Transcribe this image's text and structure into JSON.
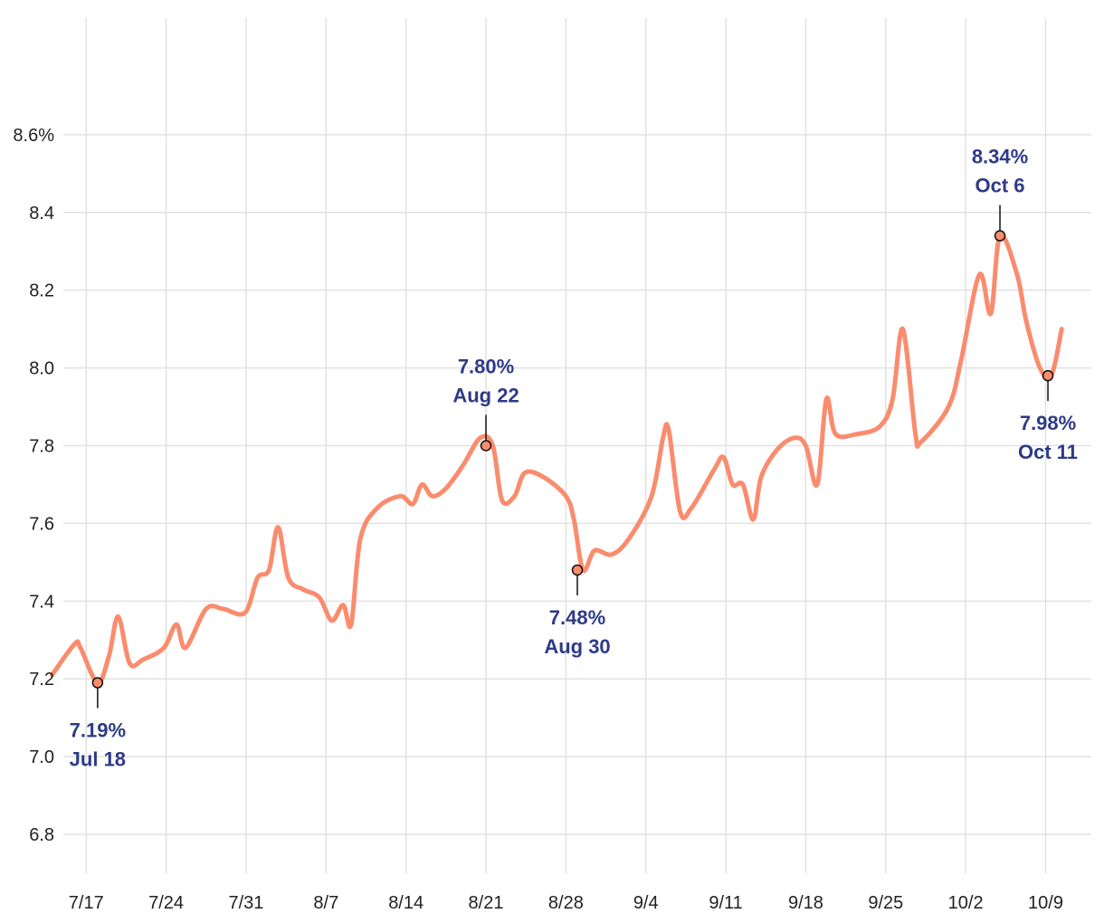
{
  "colors": {
    "line": "#fa8c6e",
    "grid": "#e2e2e2",
    "annotation_text": "#2e3a87",
    "marker_stroke": "#111111",
    "tick_text": "#222222"
  },
  "chart_data": {
    "type": "line",
    "title": "",
    "xlabel": "",
    "ylabel": "",
    "grid": true,
    "ylim": [
      6.7,
      8.9
    ],
    "xlim": [
      -2,
      88
    ],
    "x_ticks": [
      {
        "x": 0,
        "label": "7/17"
      },
      {
        "x": 7,
        "label": "7/24"
      },
      {
        "x": 14,
        "label": "7/31"
      },
      {
        "x": 21,
        "label": "8/7"
      },
      {
        "x": 28,
        "label": "8/14"
      },
      {
        "x": 35,
        "label": "8/21"
      },
      {
        "x": 42,
        "label": "8/28"
      },
      {
        "x": 49,
        "label": "9/4"
      },
      {
        "x": 56,
        "label": "9/11"
      },
      {
        "x": 63,
        "label": "9/18"
      },
      {
        "x": 70,
        "label": "9/25"
      },
      {
        "x": 77,
        "label": "10/2"
      },
      {
        "x": 84,
        "label": "10/9"
      }
    ],
    "y_ticks": [
      {
        "y": 6.8,
        "label": "6.8"
      },
      {
        "y": 7.0,
        "label": "7.0"
      },
      {
        "y": 7.2,
        "label": "7.2"
      },
      {
        "y": 7.4,
        "label": "7.4"
      },
      {
        "y": 7.6,
        "label": "7.6"
      },
      {
        "y": 7.8,
        "label": "7.8"
      },
      {
        "y": 8.0,
        "label": "8.0"
      },
      {
        "y": 8.2,
        "label": "8.2"
      },
      {
        "y": 8.4,
        "label": "8.4"
      },
      {
        "y": 8.6,
        "label": "8.6%"
      }
    ],
    "series": [
      {
        "name": "rate",
        "points": [
          [
            -3,
            7.21
          ],
          [
            -1,
            7.29
          ],
          [
            -0.5,
            7.28
          ],
          [
            1,
            7.19
          ],
          [
            2,
            7.26
          ],
          [
            2.8,
            7.36
          ],
          [
            3.8,
            7.24
          ],
          [
            5,
            7.25
          ],
          [
            6.8,
            7.28
          ],
          [
            7.9,
            7.34
          ],
          [
            8.7,
            7.28
          ],
          [
            10.5,
            7.38
          ],
          [
            12,
            7.38
          ],
          [
            13.9,
            7.37
          ],
          [
            15,
            7.46
          ],
          [
            16,
            7.48
          ],
          [
            16.8,
            7.59
          ],
          [
            17.7,
            7.46
          ],
          [
            19,
            7.43
          ],
          [
            20.4,
            7.41
          ],
          [
            21.5,
            7.35
          ],
          [
            22.5,
            7.39
          ],
          [
            23.2,
            7.34
          ],
          [
            24,
            7.56
          ],
          [
            25.5,
            7.64
          ],
          [
            27.5,
            7.67
          ],
          [
            28.6,
            7.65
          ],
          [
            29.4,
            7.7
          ],
          [
            30.3,
            7.67
          ],
          [
            31.5,
            7.69
          ],
          [
            33,
            7.75
          ],
          [
            34.5,
            7.82
          ],
          [
            35.6,
            7.8
          ],
          [
            36.4,
            7.66
          ],
          [
            37.5,
            7.67
          ],
          [
            38.4,
            7.73
          ],
          [
            40,
            7.72
          ],
          [
            42,
            7.67
          ],
          [
            42.7,
            7.61
          ],
          [
            43.5,
            7.48
          ],
          [
            44.5,
            7.53
          ],
          [
            46,
            7.52
          ],
          [
            47.5,
            7.56
          ],
          [
            49.5,
            7.67
          ],
          [
            50.5,
            7.82
          ],
          [
            51,
            7.84
          ],
          [
            52,
            7.63
          ],
          [
            53,
            7.64
          ],
          [
            55,
            7.74
          ],
          [
            55.8,
            7.77
          ],
          [
            56.6,
            7.7
          ],
          [
            57.5,
            7.7
          ],
          [
            58.4,
            7.61
          ],
          [
            59.1,
            7.72
          ],
          [
            60.5,
            7.79
          ],
          [
            62,
            7.82
          ],
          [
            63,
            7.8
          ],
          [
            64,
            7.7
          ],
          [
            64.8,
            7.92
          ],
          [
            65.6,
            7.83
          ],
          [
            67.5,
            7.83
          ],
          [
            69.5,
            7.85
          ],
          [
            70.6,
            7.92
          ],
          [
            71.5,
            8.1
          ],
          [
            72.6,
            7.83
          ],
          [
            73.1,
            7.81
          ],
          [
            75.5,
            7.9
          ],
          [
            76.6,
            8.02
          ],
          [
            78.2,
            8.24
          ],
          [
            79.2,
            8.14
          ],
          [
            80,
            8.34
          ],
          [
            81.5,
            8.24
          ],
          [
            82.3,
            8.12
          ],
          [
            83.5,
            8.0
          ],
          [
            84.5,
            7.98
          ],
          [
            85.4,
            8.1
          ]
        ]
      }
    ],
    "annotations": [
      {
        "x": 1,
        "y": 7.19,
        "value": "7.19%",
        "date": "Jul 18",
        "position": "below"
      },
      {
        "x": 35,
        "y": 7.8,
        "value": "7.80%",
        "date": "Aug 22",
        "position": "above"
      },
      {
        "x": 43,
        "y": 7.48,
        "value": "7.48%",
        "date": "Aug 30",
        "position": "below"
      },
      {
        "x": 80,
        "y": 8.34,
        "value": "8.34%",
        "date": "Oct 6",
        "position": "above"
      },
      {
        "x": 84.2,
        "y": 7.98,
        "value": "7.98%",
        "date": "Oct 11",
        "position": "below"
      }
    ]
  }
}
